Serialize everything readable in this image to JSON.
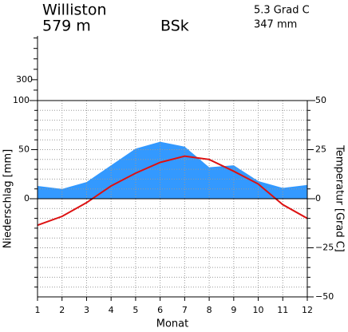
{
  "chart_data": {
    "type": "climate",
    "station": "Williston",
    "elevation": "579 m",
    "climate_class": "BSk",
    "mean_temperature": "5.3 Grad C",
    "annual_precipitation": "347 mm",
    "xlabel": "Monat",
    "ylabel": "Niederschlag [mm]",
    "y2label": "Temperatur [Grad C]",
    "x": [
      1,
      2,
      3,
      4,
      5,
      6,
      7,
      8,
      9,
      10,
      11,
      12
    ],
    "xlim": [
      1,
      12
    ],
    "xticks": [
      1,
      2,
      3,
      4,
      5,
      6,
      7,
      8,
      9,
      10,
      11,
      12
    ],
    "series": [
      {
        "name": "Niederschlag",
        "color": "#3399ff",
        "values": [
          13,
          10,
          17,
          34,
          51,
          58,
          53,
          32,
          34,
          18,
          11,
          14
        ]
      },
      {
        "name": "Temperatur",
        "color": "#dd1111",
        "axis": "y2",
        "values": [
          -13.5,
          -9,
          -2,
          6.5,
          13,
          18.5,
          21.7,
          20,
          14,
          7.5,
          -3,
          -10
        ]
      }
    ],
    "ylim": [
      -100,
      100
    ],
    "yticks": [
      0,
      50,
      100
    ],
    "yminor": [
      -90,
      -80,
      -70,
      -60,
      -50,
      -40,
      -30,
      -20,
      -10,
      10,
      20,
      30,
      40,
      60,
      70,
      80,
      90
    ],
    "upper_ylim": [
      100,
      720
    ],
    "upper_yticks": [
      300
    ],
    "upper_minor": [
      200,
      400,
      500,
      600,
      700
    ],
    "y2lim": [
      -50,
      50
    ],
    "y2ticks": [
      50,
      25,
      0,
      {
        "value": -25,
        "label": "−25"
      },
      {
        "value": -50,
        "label": "−50"
      }
    ],
    "y2minor": [
      -45,
      -40,
      -35,
      -30,
      -20,
      -15,
      -10,
      -5,
      5,
      10,
      15,
      20,
      30,
      35,
      40,
      45
    ],
    "grid": true
  }
}
